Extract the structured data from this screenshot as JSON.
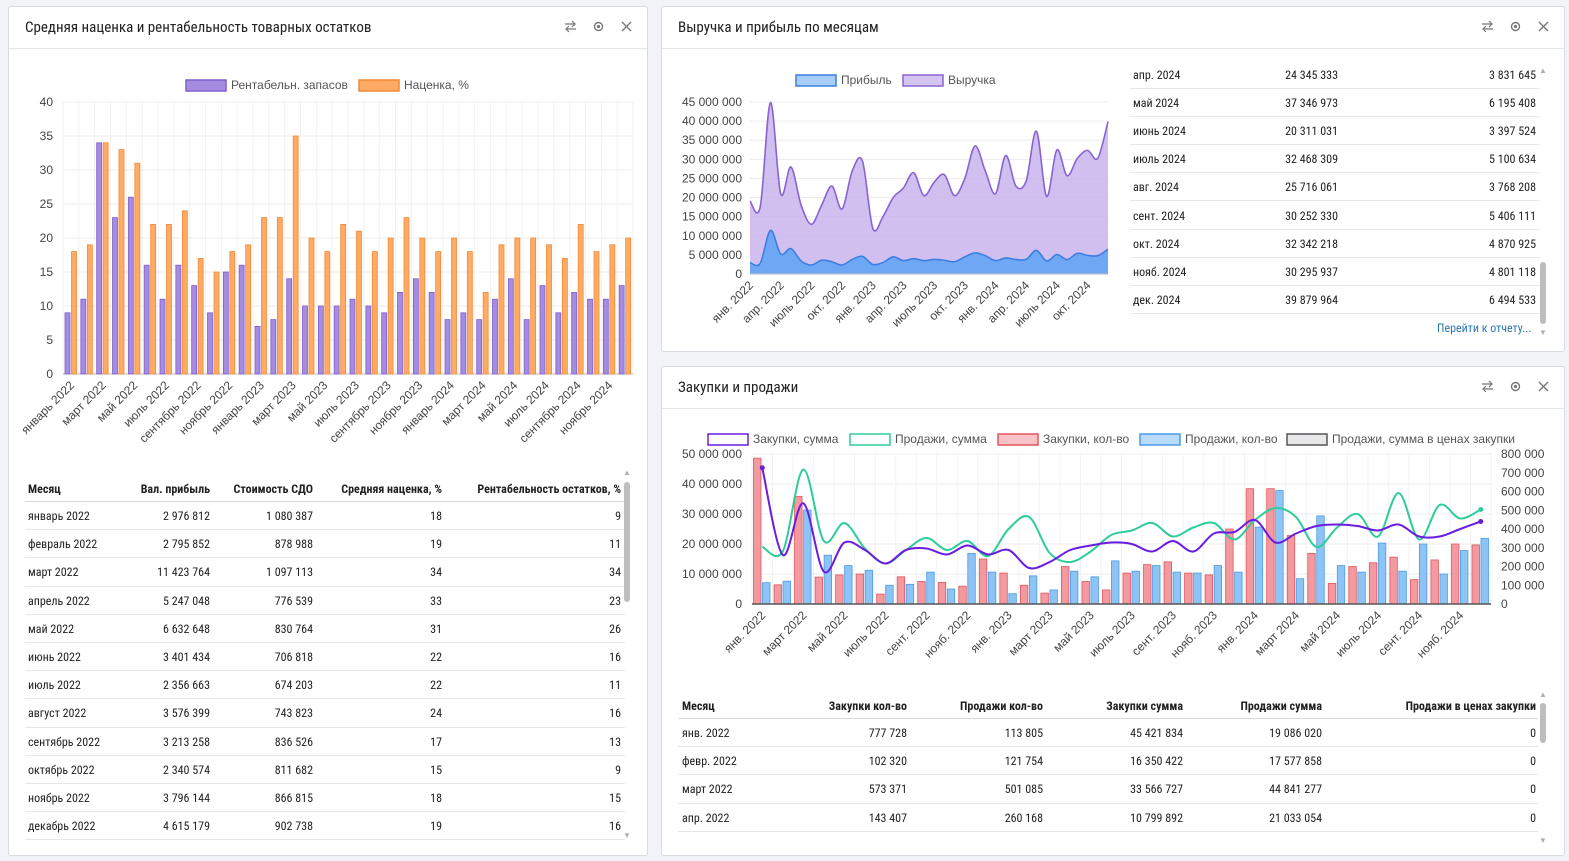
{
  "panels": {
    "p1": {
      "title": "Средняя наценка и рентабельность товарных остатков"
    },
    "p2": {
      "title": "Выручка и прибыль по месяцам"
    },
    "p3": {
      "title": "Закупки и продажи"
    }
  },
  "tools": [
    "swap-icon",
    "gear-icon",
    "close-icon"
  ],
  "p1_table": {
    "headers": [
      "Месяц",
      "Вал. прибыль",
      "Стоимость СДО",
      "Средняя наценка, %",
      "Рентабельность остатков, %"
    ],
    "rows": [
      [
        "январь 2022",
        "2 976 812",
        "1 080 387",
        "18",
        "9"
      ],
      [
        "февраль 2022",
        "2 795 852",
        "878 988",
        "19",
        "11"
      ],
      [
        "март 2022",
        "11 423 764",
        "1 097 113",
        "34",
        "34"
      ],
      [
        "апрель 2022",
        "5 247 048",
        "776 539",
        "33",
        "23"
      ],
      [
        "май 2022",
        "6 632 648",
        "830 764",
        "31",
        "26"
      ],
      [
        "июнь 2022",
        "3 401 434",
        "706 818",
        "22",
        "16"
      ],
      [
        "июль 2022",
        "2 356 663",
        "674 203",
        "22",
        "11"
      ],
      [
        "август 2022",
        "3 576 399",
        "743 823",
        "24",
        "16"
      ],
      [
        "сентябрь 2022",
        "3 213 258",
        "836 526",
        "17",
        "13"
      ],
      [
        "октябрь 2022",
        "2 340 574",
        "811 682",
        "15",
        "9"
      ],
      [
        "ноябрь 2022",
        "3 796 144",
        "866 815",
        "18",
        "15"
      ],
      [
        "декабрь 2022",
        "4 615 179",
        "902 738",
        "19",
        "16"
      ]
    ]
  },
  "p2_table": {
    "rows": [
      [
        "апр. 2024",
        "24 345 333",
        "3 831 645"
      ],
      [
        "май 2024",
        "37 346 973",
        "6 195 408"
      ],
      [
        "июнь 2024",
        "20 311 031",
        "3 397 524"
      ],
      [
        "июль 2024",
        "32 468 309",
        "5 100 634"
      ],
      [
        "авг. 2024",
        "25 716 061",
        "3 768 208"
      ],
      [
        "сент. 2024",
        "30 252 330",
        "5 406 111"
      ],
      [
        "окт. 2024",
        "32 342 218",
        "4 870 925"
      ],
      [
        "нояб. 2024",
        "30 295 937",
        "4 801 118"
      ],
      [
        "дек. 2024",
        "39 879 964",
        "6 494 533"
      ]
    ],
    "link": "Перейти к отчету..."
  },
  "p3_table": {
    "headers": [
      "Месяц",
      "Закупки кол-во",
      "Продажи кол-во",
      "Закупки сумма",
      "Продажи сумма",
      "Продажи в ценах закупки"
    ],
    "rows": [
      [
        "янв. 2022",
        "777 728",
        "113 805",
        "45 421 834",
        "19 086 020",
        "0"
      ],
      [
        "февр. 2022",
        "102 320",
        "121 754",
        "16 350 422",
        "17 577 858",
        "0"
      ],
      [
        "март 2022",
        "573 371",
        "501 085",
        "33 566 727",
        "44 841 277",
        "0"
      ],
      [
        "апр. 2022",
        "143 407",
        "260 168",
        "10 799 892",
        "21 033 054",
        "0"
      ]
    ]
  },
  "chart_data": [
    {
      "id": "markup",
      "type": "bar",
      "legend": [
        "Рентабельн. запасов",
        "Наценка, %"
      ],
      "colors": {
        "rent": "#a58ce0",
        "rent_border": "#7e5fcf",
        "markup": "#ffab66",
        "markup_border": "#f08a35"
      },
      "y_ticks": [
        "0",
        "5",
        "10",
        "15",
        "20",
        "25",
        "30",
        "35",
        "40"
      ],
      "ylim": [
        0,
        40
      ],
      "x_tick_labels": [
        "январь 2022",
        "март 2022",
        "май 2022",
        "июль 2022",
        "сентябрь 2022",
        "ноябрь 2022",
        "январь 2023",
        "март 2023",
        "май 2023",
        "июль 2023",
        "сентябрь 2023",
        "ноябрь 2023",
        "январь 2024",
        "март 2024",
        "май 2024",
        "июль 2024",
        "сентябрь 2024",
        "ноябрь 2024"
      ],
      "rent": [
        9,
        11,
        34,
        23,
        26,
        16,
        11,
        16,
        13,
        9,
        15,
        16,
        7,
        8,
        14,
        10,
        10,
        10,
        11,
        10,
        9,
        12,
        14,
        12,
        8,
        9,
        8,
        11,
        14,
        8,
        13,
        9,
        12,
        11,
        11,
        13
      ],
      "markup": [
        18,
        19,
        34,
        33,
        31,
        22,
        22,
        24,
        17,
        15,
        18,
        19,
        23,
        23,
        35,
        20,
        18,
        22,
        21,
        18,
        20,
        23,
        20,
        18,
        20,
        18,
        12,
        19,
        20,
        20,
        19,
        17,
        22,
        18,
        19,
        20
      ]
    },
    {
      "id": "revenue",
      "type": "area",
      "legend": [
        "Прибыль",
        "Выручка"
      ],
      "colors": {
        "profit": "#6ea8f5",
        "profit_border": "#3d7fe0",
        "revenue": "#c9b4ec",
        "revenue_border": "#8a63d2"
      },
      "y_ticks": [
        "0",
        "5 000 000",
        "10 000 000",
        "15 000 000",
        "20 000 000",
        "25 000 000",
        "30 000 000",
        "35 000 000",
        "40 000 000",
        "45 000 000"
      ],
      "ylim": [
        0,
        45000000
      ],
      "x_tick_labels": [
        "янв. 2022",
        "апр. 2022",
        "июль 2022",
        "окт. 2022",
        "янв. 2023",
        "апр. 2023",
        "июль 2023",
        "окт. 2023",
        "янв. 2024",
        "апр. 2024",
        "июль 2024",
        "окт. 2024"
      ],
      "revenue": [
        19086020,
        17577858,
        44841277,
        21033054,
        28000000,
        18000000,
        13000000,
        18000000,
        23000000,
        17000000,
        27000000,
        29500000,
        12000000,
        15000000,
        20000000,
        22500000,
        26500000,
        20500000,
        24000000,
        26000000,
        20500000,
        25000000,
        33500000,
        27000000,
        21000000,
        31000000,
        23000000,
        24345333,
        37346973,
        20311031,
        32468309,
        25716061,
        30252330,
        32342218,
        30295937,
        39879964
      ],
      "profit": [
        2976812,
        2795852,
        11423764,
        5247048,
        6632648,
        3401434,
        2356663,
        3576399,
        3213258,
        2340574,
        3796144,
        4615179,
        2500000,
        3000000,
        4500000,
        3500000,
        4000000,
        3500000,
        3800000,
        3600000,
        3200000,
        4500000,
        5500000,
        4800000,
        3500000,
        4200000,
        3800000,
        3831645,
        6195408,
        3397524,
        5100634,
        3768208,
        5406111,
        4870925,
        4801118,
        6494533
      ]
    },
    {
      "id": "purchases",
      "type": "bar",
      "legend": [
        "Закупки, сумма",
        "Продажи, сумма",
        "Закупки, кол-во",
        "Продажи, кол-во",
        "Продажи, сумма в ценах закупки"
      ],
      "colors": {
        "purchases_sum": "#6a1de0",
        "sales_sum": "#2ecc9a",
        "purchases_qty": "#f29aa0",
        "purchases_qty_border": "#e0575f",
        "sales_qty": "#8ec3f5",
        "sales_qty_border": "#4b9be6",
        "sales_cost": "#e8e8ea",
        "sales_cost_border": "#555"
      },
      "y_ticks_left": [
        "0",
        "10 000 000",
        "20 000 000",
        "30 000 000",
        "40 000 000",
        "50 000 000"
      ],
      "y_ticks_right": [
        "0",
        "100 000",
        "200 000",
        "300 000",
        "400 000",
        "500 000",
        "600 000",
        "700 000",
        "800 000"
      ],
      "ylim_left": [
        0,
        50000000
      ],
      "ylim_right": [
        0,
        800000
      ],
      "x_tick_labels": [
        "янв. 2022",
        "март 2022",
        "май 2022",
        "июль 2022",
        "сент. 2022",
        "нояб. 2022",
        "янв. 2023",
        "март 2023",
        "май 2023",
        "июль 2023",
        "сент. 2023",
        "нояб. 2023",
        "янв. 2024",
        "март 2024",
        "май 2024",
        "июль 2024",
        "сент. 2024",
        "нояб. 2024"
      ],
      "purchases_sum": [
        45421834,
        16350422,
        33566727,
        10799892,
        20500000,
        18000000,
        13500000,
        18000000,
        18500000,
        16500000,
        19500000,
        16500000,
        18000000,
        12000000,
        14000000,
        18000000,
        19500000,
        20500000,
        20000000,
        17500000,
        21000000,
        17500000,
        23500000,
        24000000,
        28000000,
        20500000,
        23500000,
        26000000,
        26500000,
        26000000,
        24500000,
        26500000,
        22500000,
        22500000,
        25000000,
        27500000
      ],
      "sales_sum": [
        19086020,
        17577858,
        44841277,
        21033054,
        27000000,
        18500000,
        13500000,
        18000000,
        22000000,
        18000000,
        21000000,
        16000000,
        25000000,
        29000000,
        17000000,
        14000000,
        17500000,
        23000000,
        24500000,
        27000000,
        22500000,
        25500000,
        27000000,
        21500000,
        28000000,
        32000000,
        29000000,
        19000000,
        25500000,
        30000000,
        22500000,
        37000000,
        21500000,
        33000000,
        28500000,
        31500000
      ],
      "purchases_qty": [
        777728,
        102320,
        573371,
        143407,
        155000,
        160000,
        53000,
        145000,
        120000,
        115000,
        95000,
        240000,
        165000,
        100000,
        58000,
        200000,
        120000,
        75000,
        165000,
        210000,
        225000,
        165000,
        155000,
        400000,
        615000,
        615000,
        365000,
        270000,
        110000,
        200000,
        220000,
        250000,
        130000,
        235000,
        320000,
        315000
      ],
      "sales_qty": [
        113805,
        121754,
        501085,
        260168,
        205000,
        180000,
        100000,
        105000,
        170000,
        80000,
        270000,
        170000,
        55000,
        150000,
        75000,
        175000,
        145000,
        230000,
        175000,
        205000,
        170000,
        165000,
        205000,
        170000,
        410000,
        605000,
        135000,
        470000,
        205000,
        170000,
        325000,
        175000,
        320000,
        160000,
        285000,
        350000
      ]
    }
  ]
}
